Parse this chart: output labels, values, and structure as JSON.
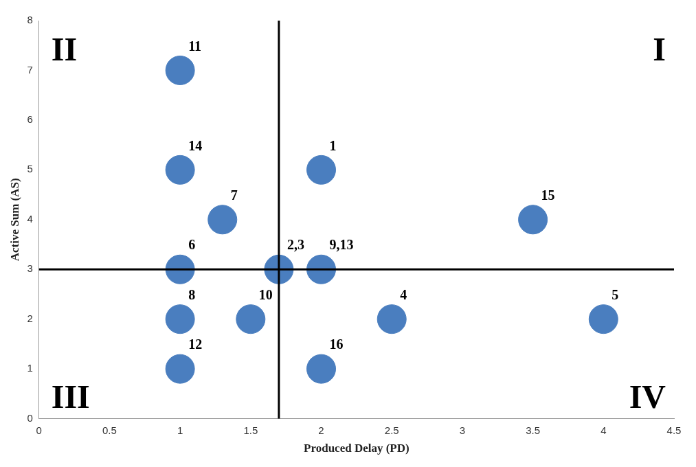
{
  "chart_data": {
    "type": "scatter",
    "xlabel": "Produced Delay (PD)",
    "ylabel": "Active Sum (AS)",
    "x": [
      1,
      1,
      2,
      1.3,
      3.5,
      1,
      1.7,
      2,
      1,
      1.5,
      2.5,
      4,
      1,
      2
    ],
    "values": [
      7,
      5,
      5,
      4,
      4,
      3,
      3,
      3,
      2,
      2,
      2,
      2,
      1,
      1
    ],
    "color": "#4a7ebf",
    "marker": "circle",
    "xlim": [
      0,
      4.5
    ],
    "xticks": [
      0,
      0.5,
      1,
      1.5,
      2,
      2.5,
      3,
      3.5,
      4,
      4.5
    ],
    "ylim": [
      0,
      8
    ],
    "yticks": [
      0,
      1,
      2,
      3,
      4,
      5,
      6,
      7,
      8
    ],
    "grid": false,
    "legend": false,
    "ref_lines": [
      {
        "axis": "x",
        "value": 1.7,
        "color": "#000000"
      },
      {
        "axis": "y",
        "value": 3,
        "color": "#000000"
      }
    ],
    "annotations": [
      "I",
      "II",
      "III",
      "IV",
      {
        "text": "11",
        "x": 1,
        "y": 7
      },
      {
        "text": "14",
        "x": 1,
        "y": 5
      },
      {
        "text": "1",
        "x": 2,
        "y": 5
      },
      {
        "text": "7",
        "x": 1.3,
        "y": 4
      },
      {
        "text": "15",
        "x": 3.5,
        "y": 4
      },
      {
        "text": "6",
        "x": 1,
        "y": 3
      },
      {
        "text": "2,3",
        "x": 1.7,
        "y": 3
      },
      {
        "text": "9,13",
        "x": 2,
        "y": 3
      },
      {
        "text": "8",
        "x": 1,
        "y": 2
      },
      {
        "text": "10",
        "x": 1.5,
        "y": 2
      },
      {
        "text": "4",
        "x": 2.5,
        "y": 2
      },
      {
        "text": "5",
        "x": 4,
        "y": 2
      },
      {
        "text": "12",
        "x": 1,
        "y": 1
      },
      {
        "text": "16",
        "x": 2,
        "y": 1
      }
    ]
  }
}
